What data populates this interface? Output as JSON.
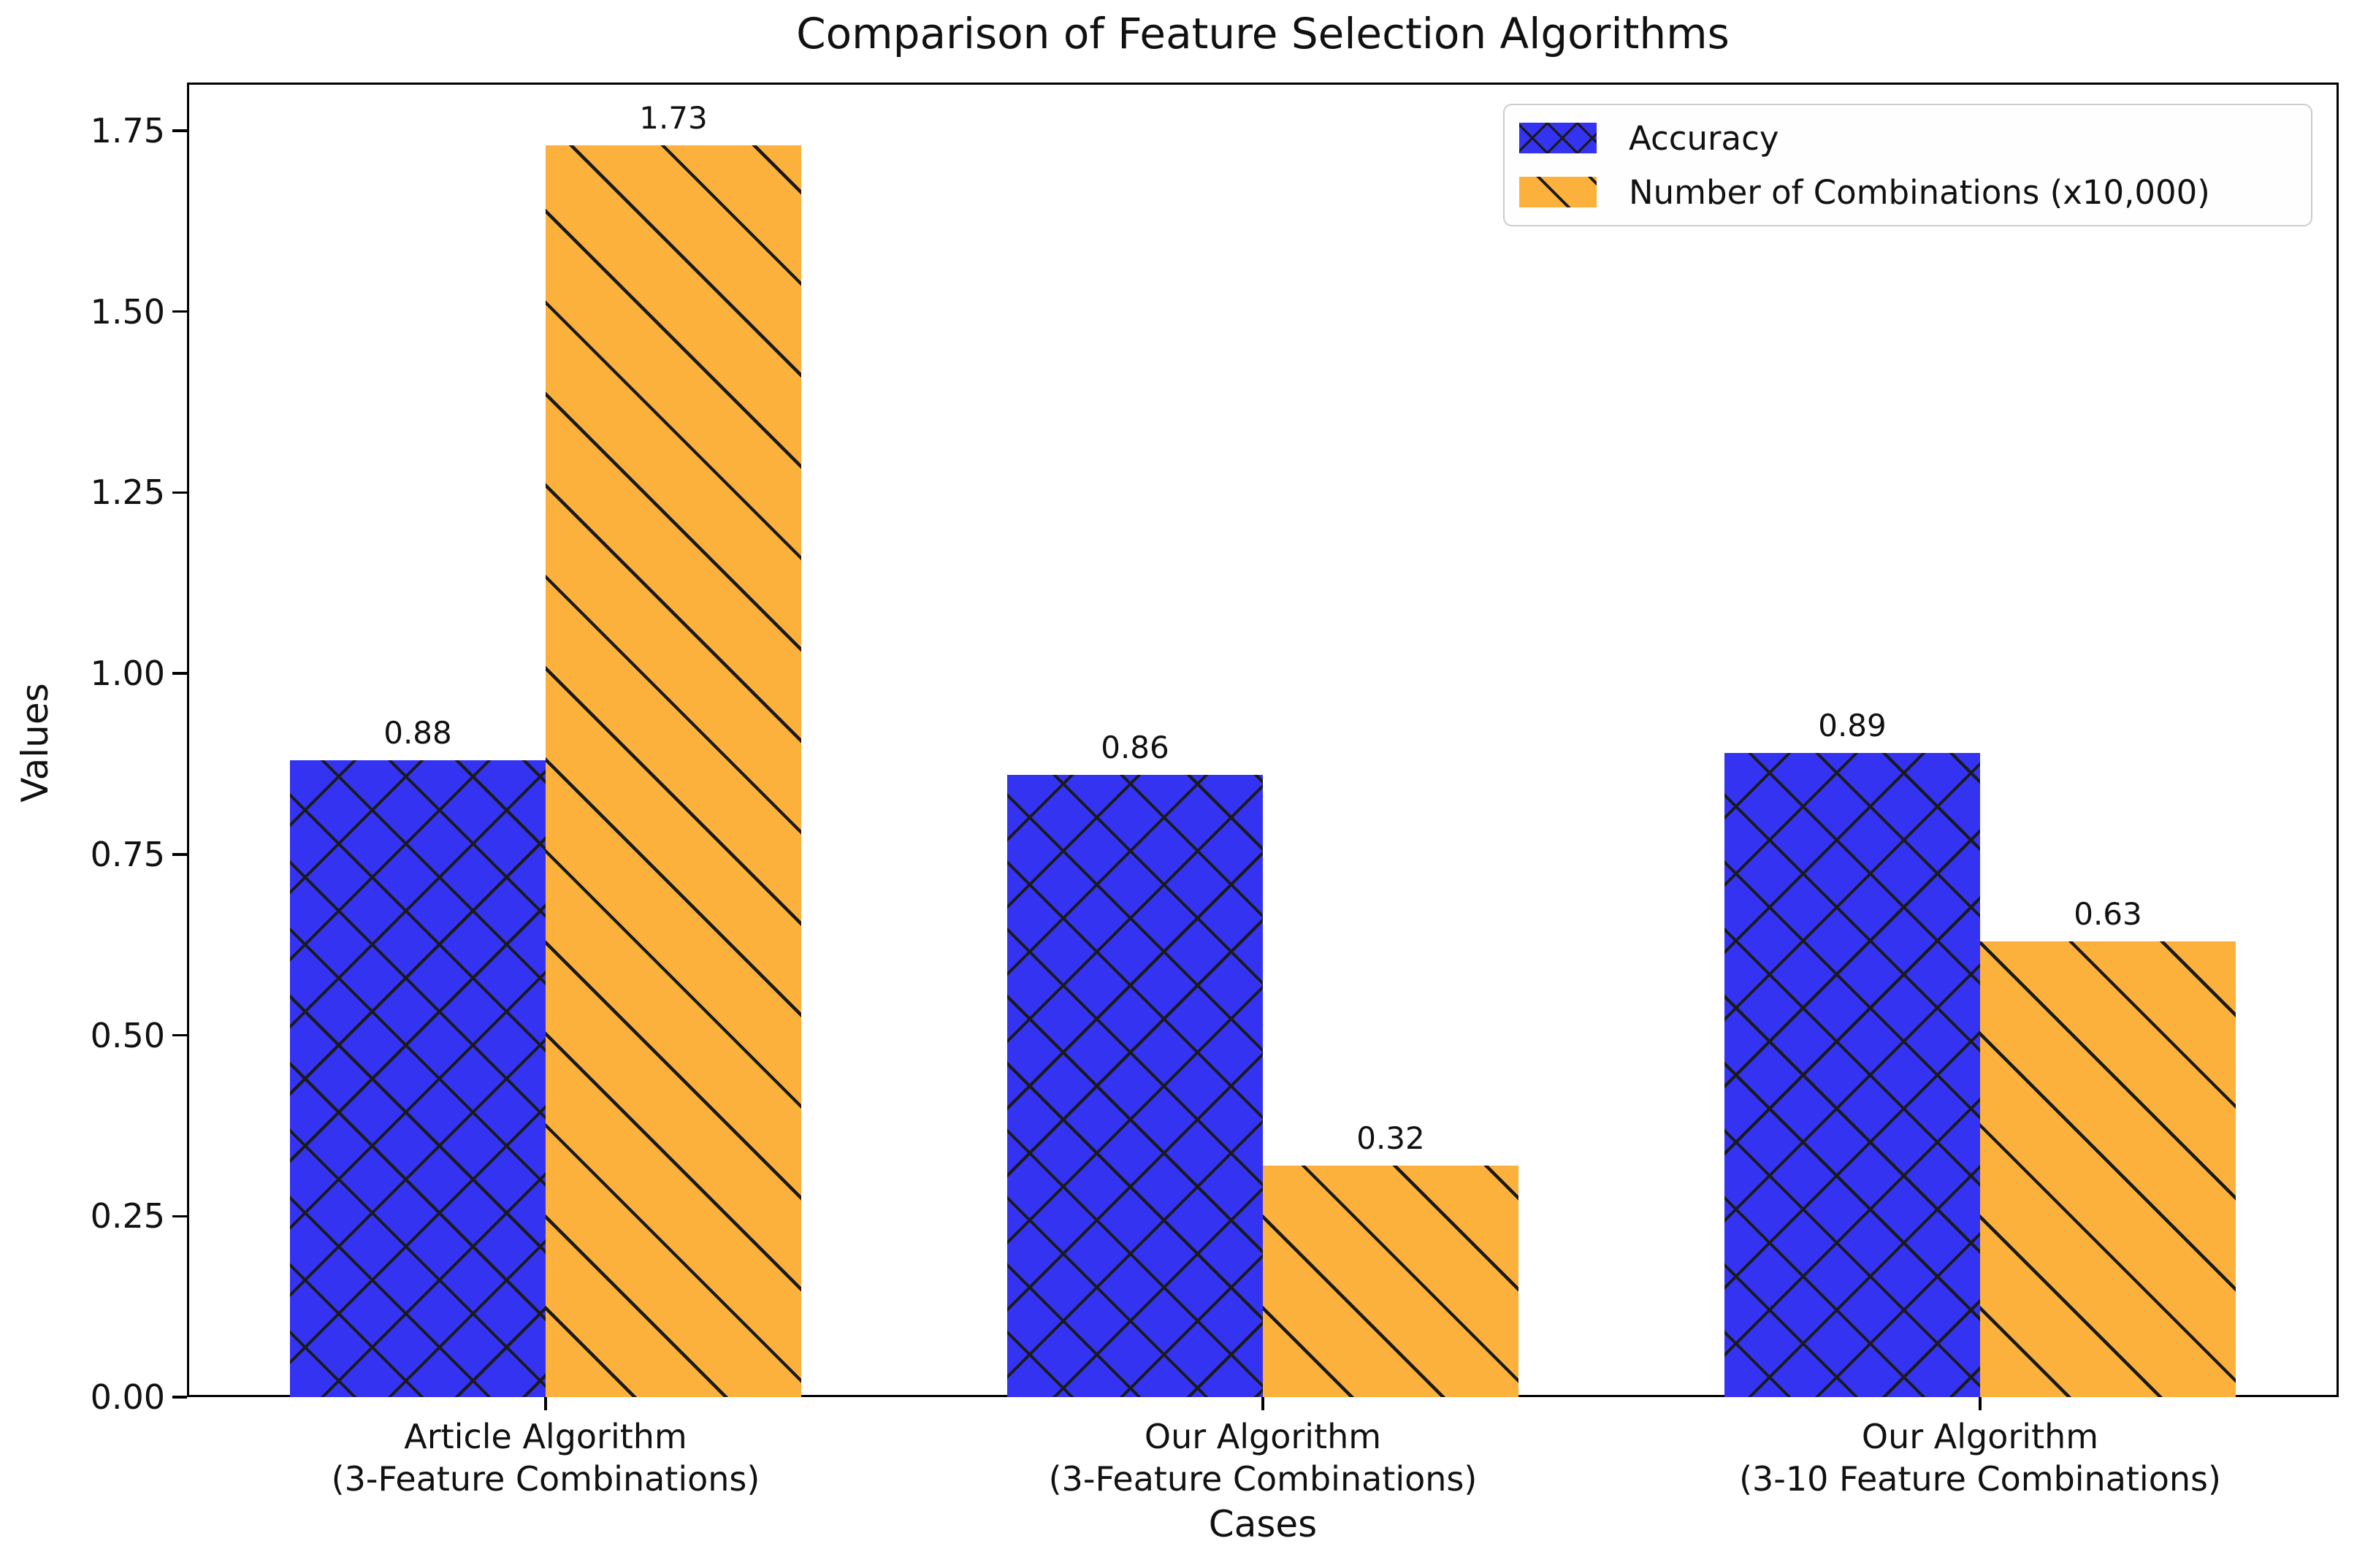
{
  "title": "Comparison of Feature Selection Algorithms",
  "chart_data": {
    "type": "bar",
    "title": "Comparison of Feature Selection Algorithms",
    "xlabel": "Cases",
    "ylabel": "Values",
    "ylim": [
      0,
      1.8165
    ],
    "yticks": [
      "0.00",
      "0.25",
      "0.50",
      "0.75",
      "1.00",
      "1.25",
      "1.50",
      "1.75"
    ],
    "grid": false,
    "legend_position": "upper right",
    "bar_width_fraction": 0.35,
    "categories": [
      "Article Algorithm\n(3-Feature Combinations)",
      "Our Algorithm\n(3-Feature Combinations)",
      "Our Algorithm\n(3-10 Feature Combinations)"
    ],
    "series": [
      {
        "name": "Accuracy",
        "values": [
          0.88,
          0.86,
          0.89
        ],
        "labels": [
          "0.88",
          "0.86",
          "0.89"
        ],
        "color": "#3433F2",
        "hatch": "xx"
      },
      {
        "name": "Number of Combinations (x10,000)",
        "values": [
          1.73,
          0.32,
          0.63
        ],
        "labels": [
          "1.73",
          "0.32",
          "0.63"
        ],
        "color": "#FCB13C",
        "hatch": "\\"
      }
    ]
  }
}
